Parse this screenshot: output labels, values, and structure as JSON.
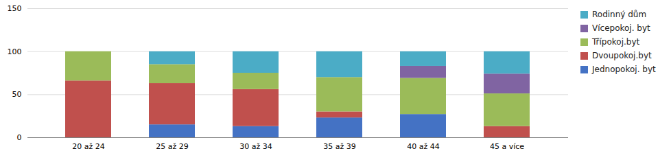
{
  "chart_data": {
    "type": "bar",
    "stacked": true,
    "categories": [
      "20 až 24",
      "25 až 29",
      "30 až 34",
      "35 až 39",
      "40 až 44",
      "45 a více"
    ],
    "series": [
      {
        "name": "Jednopokoj. byt",
        "color": "#4472C4",
        "values": [
          0,
          15,
          13,
          23,
          27,
          0
        ]
      },
      {
        "name": "Dvoupokoj.byt",
        "color": "#C0504D",
        "values": [
          66,
          48,
          43,
          7,
          0,
          13
        ]
      },
      {
        "name": "Třípokoj.byt",
        "color": "#9BBB59",
        "values": [
          34,
          22,
          19,
          40,
          42,
          38
        ]
      },
      {
        "name": "Vícepokoj. byt",
        "color": "#8064A2",
        "values": [
          0,
          0,
          0,
          0,
          14,
          23
        ]
      },
      {
        "name": "Rodinný dům",
        "color": "#4BACC6",
        "values": [
          0,
          15,
          25,
          30,
          17,
          26
        ]
      }
    ],
    "ylim": [
      0,
      150
    ],
    "yticks": [
      0,
      50,
      100,
      150
    ],
    "grid": true,
    "legend": "right"
  }
}
